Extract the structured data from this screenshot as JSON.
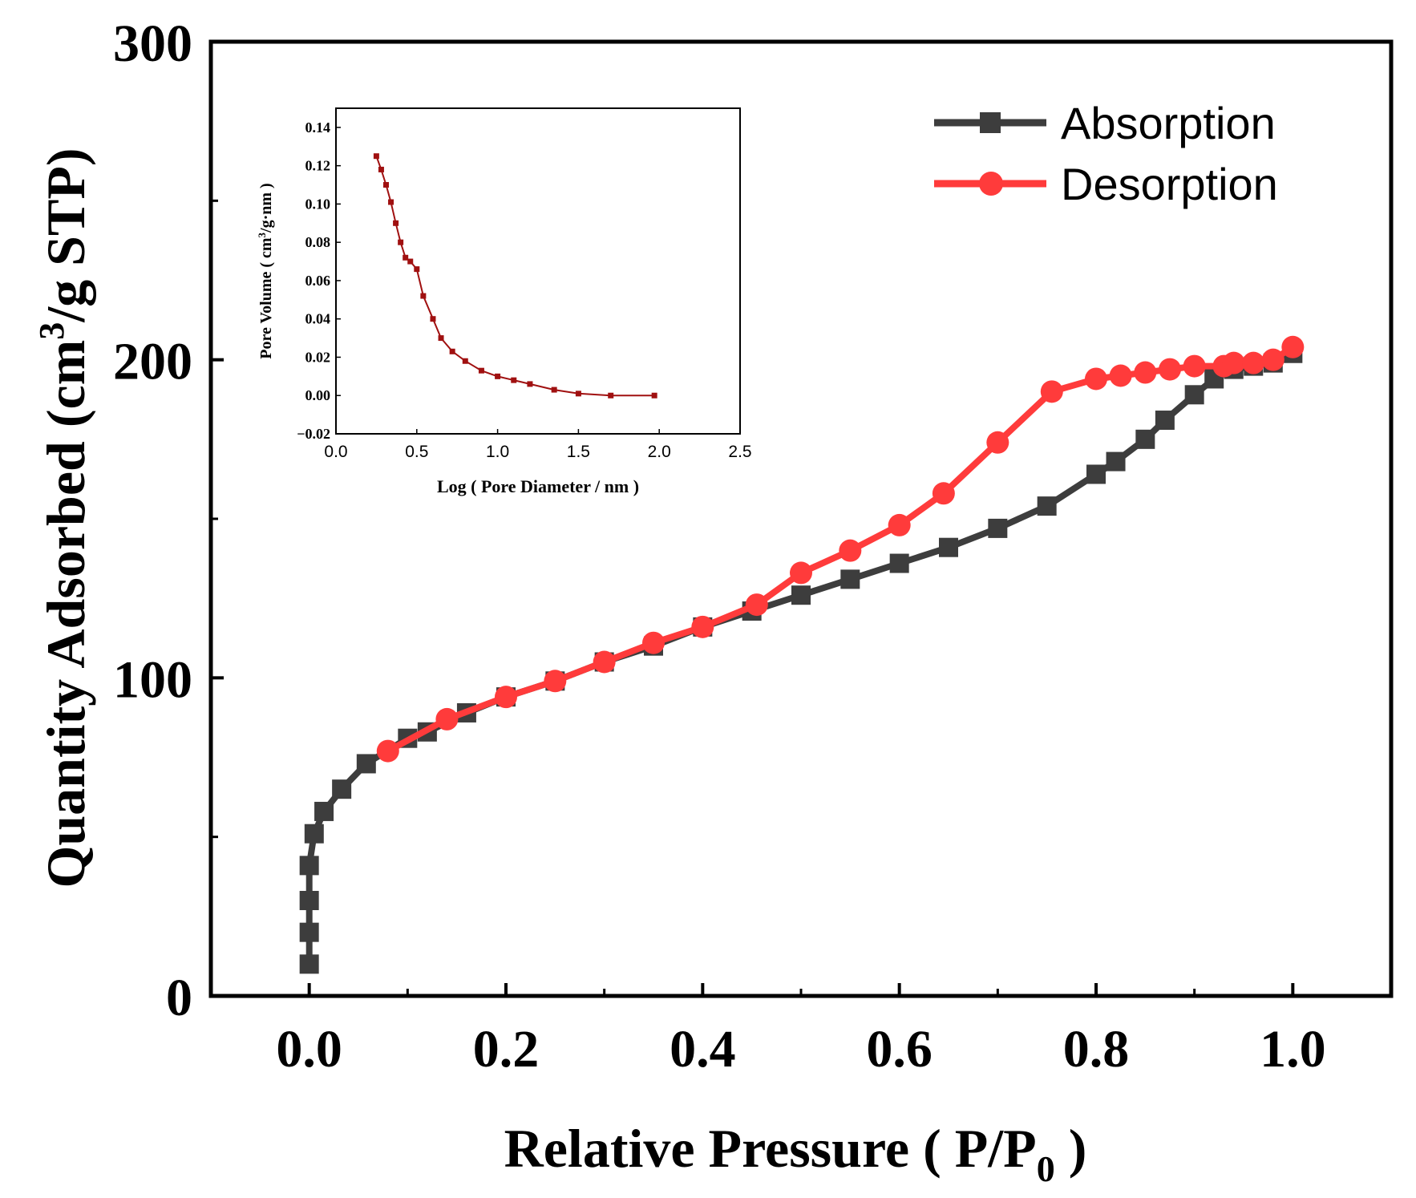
{
  "chart_data": [
    {
      "type": "line",
      "xlabel_main": "Relative Pressure ( P/P",
      "xlabel_sub": "0",
      "xlabel_end": " )",
      "ylabel_main": "Quantity Adsorbed (cm",
      "ylabel_sup": "3",
      "ylabel_end": "/g STP)",
      "xlim": [
        -0.1,
        1.1
      ],
      "ylim": [
        0,
        300
      ],
      "x_ticks": [
        0.0,
        0.2,
        0.4,
        0.6,
        0.8,
        1.0
      ],
      "x_tick_labels": [
        "0.0",
        "0.2",
        "0.4",
        "0.6",
        "0.8",
        "1.0"
      ],
      "y_ticks": [
        0,
        100,
        200,
        300
      ],
      "y_tick_labels": [
        "0",
        "100",
        "200",
        "300"
      ],
      "x_minor_ticks": [
        -0.1,
        0.1,
        0.3,
        0.5,
        0.7,
        0.9,
        1.1
      ],
      "y_minor_ticks": [
        50,
        150,
        250
      ],
      "legend_position": "top-right",
      "series": [
        {
          "name": "Absorption",
          "color": "#3d3d3d",
          "marker": "square",
          "x": [
            0.0,
            0.0,
            0.0,
            0.0,
            0.005,
            0.015,
            0.033,
            0.058,
            0.1,
            0.12,
            0.16,
            0.2,
            0.25,
            0.3,
            0.35,
            0.4,
            0.45,
            0.5,
            0.55,
            0.6,
            0.65,
            0.7,
            0.75,
            0.8,
            0.82,
            0.85,
            0.87,
            0.9,
            0.92,
            0.94,
            0.96,
            0.98,
            1.0
          ],
          "y": [
            10,
            20,
            30,
            41,
            51,
            58,
            65,
            73,
            81,
            83,
            89,
            94,
            99,
            105,
            110,
            116,
            121,
            126,
            131,
            136,
            141,
            147,
            154,
            164,
            168,
            175,
            181,
            189,
            194,
            197,
            198,
            199,
            202
          ]
        },
        {
          "name": "Desorption",
          "color": "#ff3b3b",
          "marker": "circle",
          "x": [
            0.08,
            0.14,
            0.2,
            0.25,
            0.3,
            0.35,
            0.4,
            0.455,
            0.5,
            0.55,
            0.6,
            0.645,
            0.7,
            0.755,
            0.8,
            0.825,
            0.85,
            0.875,
            0.9,
            0.93,
            0.94,
            0.96,
            0.98,
            1.0
          ],
          "y": [
            77,
            87,
            94,
            99,
            105,
            111,
            116,
            123,
            133,
            140,
            148,
            158,
            174,
            190,
            194,
            195,
            196,
            197,
            198,
            198,
            199,
            199,
            200,
            204
          ]
        }
      ]
    },
    {
      "type": "line",
      "xlabel": "Log ( Pore Diameter / nm )",
      "ylabel_main": "Pore Volume ( cm",
      "ylabel_sup": "3",
      "ylabel_end": "/g·nm )",
      "xlim": [
        0.0,
        2.5
      ],
      "ylim": [
        -0.02,
        0.15
      ],
      "x_ticks": [
        0.0,
        0.5,
        1.0,
        1.5,
        2.0,
        2.5
      ],
      "x_tick_labels": [
        "0.0",
        "0.5",
        "1.0",
        "1.5",
        "2.0",
        "2.5"
      ],
      "y_ticks": [
        -0.02,
        0.0,
        0.02,
        0.04,
        0.06,
        0.08,
        0.1,
        0.12,
        0.14
      ],
      "y_tick_labels": [
        "−0.02",
        "0.00",
        "0.02",
        "0.04",
        "0.06",
        "0.08",
        "0.10",
        "0.12",
        "0.14"
      ],
      "series": [
        {
          "color": "#a01010",
          "marker": "square",
          "x": [
            0.25,
            0.28,
            0.31,
            0.34,
            0.37,
            0.4,
            0.43,
            0.46,
            0.5,
            0.54,
            0.6,
            0.65,
            0.72,
            0.8,
            0.9,
            1.0,
            1.1,
            1.2,
            1.35,
            1.5,
            1.7,
            1.97
          ],
          "y": [
            0.125,
            0.118,
            0.11,
            0.101,
            0.09,
            0.08,
            0.072,
            0.07,
            0.066,
            0.052,
            0.04,
            0.03,
            0.023,
            0.018,
            0.013,
            0.01,
            0.008,
            0.006,
            0.003,
            0.001,
            0.0,
            0.0
          ]
        }
      ]
    }
  ],
  "legend": {
    "absorption_label": "Absorption",
    "desorption_label": "Desorption"
  }
}
